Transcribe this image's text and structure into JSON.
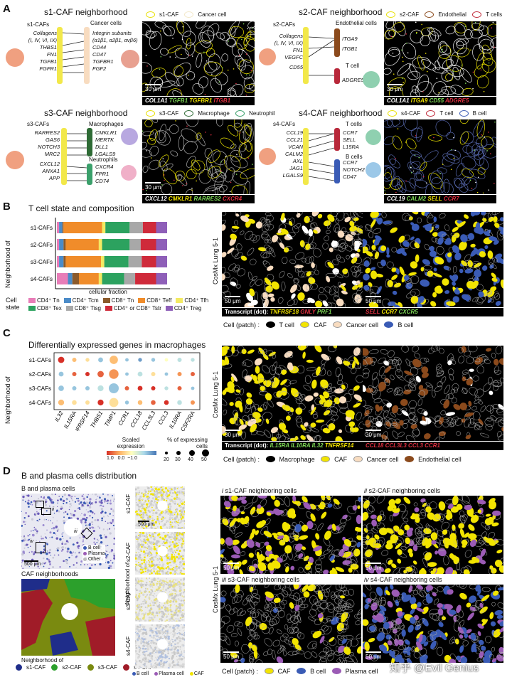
{
  "panel_a": {
    "letter": "A",
    "s1": {
      "title": "s1-CAF neighborhood",
      "left_head": "s1-CAFs",
      "right_head": "Cancer cells",
      "ligands": [
        "Collagens",
        "(I, IV, VI, IX)",
        "THBS1",
        "FN1",
        "TGFB1",
        "FGFR1"
      ],
      "receptors": [
        "Integrin subunits",
        "(α1β1, α2β1, αvβ6)",
        "CD44",
        "CD47",
        "TGFBR1",
        "FGF2"
      ],
      "legend": [
        "s1-CAF",
        "Cancer cell"
      ],
      "scale": "30 μm",
      "strip": [
        "COL1A1",
        "TGFB1",
        "TGFBR1",
        "ITGB1"
      ]
    },
    "s2": {
      "title": "s2-CAF neighborhood",
      "left_head": "s2-CAFs",
      "right_head": "Endothelial cells",
      "right_head2": "T cell",
      "ligands": [
        "Collagens",
        "(I, IV, VI, IX)",
        "FN1",
        "VEGFC",
        "CD55"
      ],
      "receptors": [
        "ITGA9",
        "ITGB1",
        "ADGRE5"
      ],
      "legend": [
        "s2-CAF",
        "Endothelial",
        "T cells"
      ],
      "scale": "30 μm",
      "strip": [
        "COL1A1",
        "ITGA9",
        "CD55",
        "ADGRE5"
      ]
    },
    "s3": {
      "title": "s3-CAF neighborhood",
      "left_head": "s3-CAFs",
      "right_head": "Macrophages",
      "right_head2": "Neutrophils",
      "ligands": [
        "RARRES2",
        "GAS6",
        "NOTCH3",
        "MRC2",
        "CXCL12",
        "ANXA1",
        "APP"
      ],
      "receptors": [
        "CMKLR1",
        "MERTK",
        "DLL1",
        "LGALS9",
        "CXCR4",
        "FPR1",
        "CD74"
      ],
      "legend": [
        "s3-CAF",
        "Macrophage",
        "Neutrophil"
      ],
      "scale": "30 μm",
      "strip": [
        "CXCL12",
        "CMKLR1",
        "RARRES2",
        "CXCR4"
      ]
    },
    "s4": {
      "title": "s4-CAF neighborhood",
      "left_head": "s4-CAFs",
      "right_head": "T cells",
      "right_head2": "B cells",
      "ligands": [
        "CCL19",
        "CCL21",
        "VCAN",
        "CALM2",
        "AXL",
        "JAG1",
        "LGALS9"
      ],
      "receptors": [
        "CCR7",
        "SELL",
        "L15RA",
        "CCR7",
        "NOTCH2",
        "CD47"
      ],
      "legend": [
        "s4-CAF",
        "T cell",
        "B cell"
      ],
      "scale": "30 μm",
      "strip": [
        "CCL19",
        "CALM2",
        "SELL",
        "CCR7"
      ]
    }
  },
  "panel_b": {
    "letter": "B",
    "title": "T cell state and composition",
    "ylabel": "Neighborhood of",
    "xlabel": "cellular fraction",
    "legend_title": "Cell state",
    "side_label": "CosMx Lung 5-1",
    "strip_left_head": "Transcript (dot):",
    "strip_left": [
      "TNFRSF18",
      "GNLY",
      "PRF1"
    ],
    "strip_right": [
      "SELL",
      "CCR7",
      "CXCR5"
    ],
    "patch_head": "Cell (patch) :",
    "patches": [
      "T cell",
      "CAF",
      "Cancer cell",
      "B cell"
    ],
    "scale_left": "50 μm",
    "scale_right": "50 μm"
  },
  "chart_data": [
    {
      "type": "bar",
      "orientation": "horizontal-stacked",
      "title": "T cell state and composition",
      "ylabel": "Neighborhood of",
      "xlabel": "cellular fraction",
      "xlim": [
        0,
        1
      ],
      "categories": [
        "s1-CAFs",
        "s2-CAFs",
        "s3-CAFs",
        "s4-CAFs"
      ],
      "series": [
        {
          "name": "CD4⁺ Tn",
          "color": "#e87db8",
          "values": [
            0.02,
            0.02,
            0.02,
            0.1
          ]
        },
        {
          "name": "CD4⁺ Tcm",
          "color": "#4b8bc8",
          "values": [
            0.03,
            0.04,
            0.04,
            0.04
          ]
        },
        {
          "name": "CD8⁺ Tn",
          "color": "#8b5a2b",
          "values": [
            0.01,
            0.02,
            0.02,
            0.06
          ]
        },
        {
          "name": "CD8⁺ Teff",
          "color": "#f08c2a",
          "values": [
            0.35,
            0.3,
            0.32,
            0.18
          ]
        },
        {
          "name": "CD4⁺ Tfh",
          "color": "#f3ea63",
          "values": [
            0.03,
            0.03,
            0.03,
            0.03
          ]
        },
        {
          "name": "CD8⁺ Tex",
          "color": "#2ca25f",
          "values": [
            0.22,
            0.25,
            0.22,
            0.2
          ]
        },
        {
          "name": "CD8⁺ Tisg",
          "color": "#a8a8a8",
          "values": [
            0.12,
            0.1,
            0.12,
            0.1
          ]
        },
        {
          "name": "CD4⁺ or CD8⁺ Tstr",
          "color": "#cf2a3a",
          "values": [
            0.12,
            0.14,
            0.13,
            0.19
          ]
        },
        {
          "name": "CD4⁺ Treg",
          "color": "#8e5fb8",
          "values": [
            0.1,
            0.1,
            0.1,
            0.1
          ]
        }
      ]
    },
    {
      "type": "scatter",
      "subtype": "dot-plot",
      "title": "Differentially expressed genes in macrophages",
      "ylabel": "Neighborhood of",
      "categories_y": [
        "s1-CAFs",
        "s2-CAFs",
        "s3-CAFs",
        "s4-CAFs"
      ],
      "categories_x": [
        "IL32",
        "IL15RA",
        "TNFRSF14",
        "THBS1",
        "TIMP1",
        "CCR1",
        "CCL18",
        "CCL3L3",
        "CCL3",
        "IL10RA",
        "CSF2RA"
      ],
      "scaled_expression": [
        [
          1.0,
          0.4,
          0.2,
          -0.6,
          0.4,
          -0.6,
          -0.8,
          -0.6,
          0.0,
          -0.4,
          -0.4
        ],
        [
          -0.6,
          0.8,
          1.0,
          0.8,
          0.6,
          -0.6,
          -0.4,
          0.2,
          -0.6,
          0.6,
          0.8
        ],
        [
          -0.6,
          -0.6,
          -0.6,
          -0.4,
          -0.6,
          0.8,
          1.0,
          1.0,
          -0.4,
          0.8,
          -0.6
        ],
        [
          0.4,
          0.2,
          0.2,
          1.0,
          0.2,
          -0.6,
          0.4,
          0.8,
          1.0,
          -0.4,
          0.6
        ]
      ],
      "pct_expressing": [
        [
          32,
          22,
          20,
          25,
          42,
          18,
          20,
          20,
          18,
          22,
          20
        ],
        [
          25,
          22,
          22,
          32,
          48,
          18,
          25,
          22,
          18,
          22,
          22
        ],
        [
          28,
          22,
          22,
          30,
          50,
          22,
          25,
          22,
          20,
          22,
          18
        ],
        [
          30,
          24,
          22,
          30,
          46,
          20,
          24,
          24,
          24,
          24,
          22
        ]
      ],
      "colorbar_label": "Scaled expression",
      "colorbar_ticks": [
        "1.0",
        "0.0",
        "−1.0"
      ],
      "size_label": "% of expressing cells",
      "size_ticks": [
        20,
        30,
        40,
        50
      ]
    }
  ],
  "panel_c": {
    "letter": "C",
    "title": "Differentially expressed genes in macrophages",
    "ylabel": "Neighborhood of",
    "colorbar_label": "Scaled expression",
    "colorbar_ticks": "1.0   0.0  −1.0",
    "size_label": "% of expressing cells",
    "size_ticks": [
      "20",
      "30",
      "40",
      "50"
    ],
    "side_label": "CosMx Lung 5-1",
    "strip_left_head": "Transcript (dot):",
    "strip_left": [
      "IL15RA",
      "IL10RA",
      "IL32",
      "TNFRSF14"
    ],
    "strip_right": [
      "CCL18",
      "CCL3L3",
      "CCL3",
      "CCR1"
    ],
    "patch_head": "Cell (patch) :",
    "patches": [
      "Macrophage",
      "CAF",
      "Cancer cell",
      "Endothelial cell"
    ],
    "scale_left": "30 μm",
    "scale_right": "30 μm"
  },
  "panel_d": {
    "letter": "D",
    "title": "B and plasma cells distribution",
    "sub1": "B and plasma cells",
    "sub2": "CAF neighborhoods",
    "scale_main": "500 μm",
    "roman_map": [
      "i",
      "ii",
      "iii",
      "iv"
    ],
    "map_legend": [
      "B cell",
      "Plasma",
      "Other"
    ],
    "nbh_head": "Neighborhood of",
    "nbh_legend": [
      "s1-CAF",
      "s2-CAF",
      "s3-CAF",
      "s4-CAF"
    ],
    "thumb_labels": [
      "s1-CAF",
      "s2-CAF",
      "s3-CAF",
      "s4-CAF"
    ],
    "thumb_side": "Neighborhood of",
    "thumb_scale": "500 μm",
    "thumb_legend": [
      "B cell",
      "Plasma cell",
      "CAF"
    ],
    "side_label": "CosMx Lung 5-1",
    "panels": [
      {
        "num": "i",
        "label": "s1-CAF neighboring cells"
      },
      {
        "num": "ii",
        "label": "s2-CAF neighboring cells"
      },
      {
        "num": "iii",
        "label": "s3-CAF neighboring cells"
      },
      {
        "num": "iv",
        "label": "s4-CAF neighboring cells"
      }
    ],
    "scale": "50 μm",
    "patch_head": "Cell (patch) :",
    "patches": [
      "CAF",
      "B cell",
      "Plasma cell"
    ],
    "watermark": "知乎 @Evil Genius"
  },
  "colors": {
    "caf_yellow": "#f2e400",
    "cancer_peach": "#f8dcc0",
    "bcell_blue": "#3a5bb5",
    "plasma_purple": "#9b5bb5",
    "endo_brown": "#8b4a1c",
    "s1": "#1f2d8a",
    "s2": "#2ca02c",
    "s3": "#7a8a10",
    "s4": "#a01c28"
  }
}
